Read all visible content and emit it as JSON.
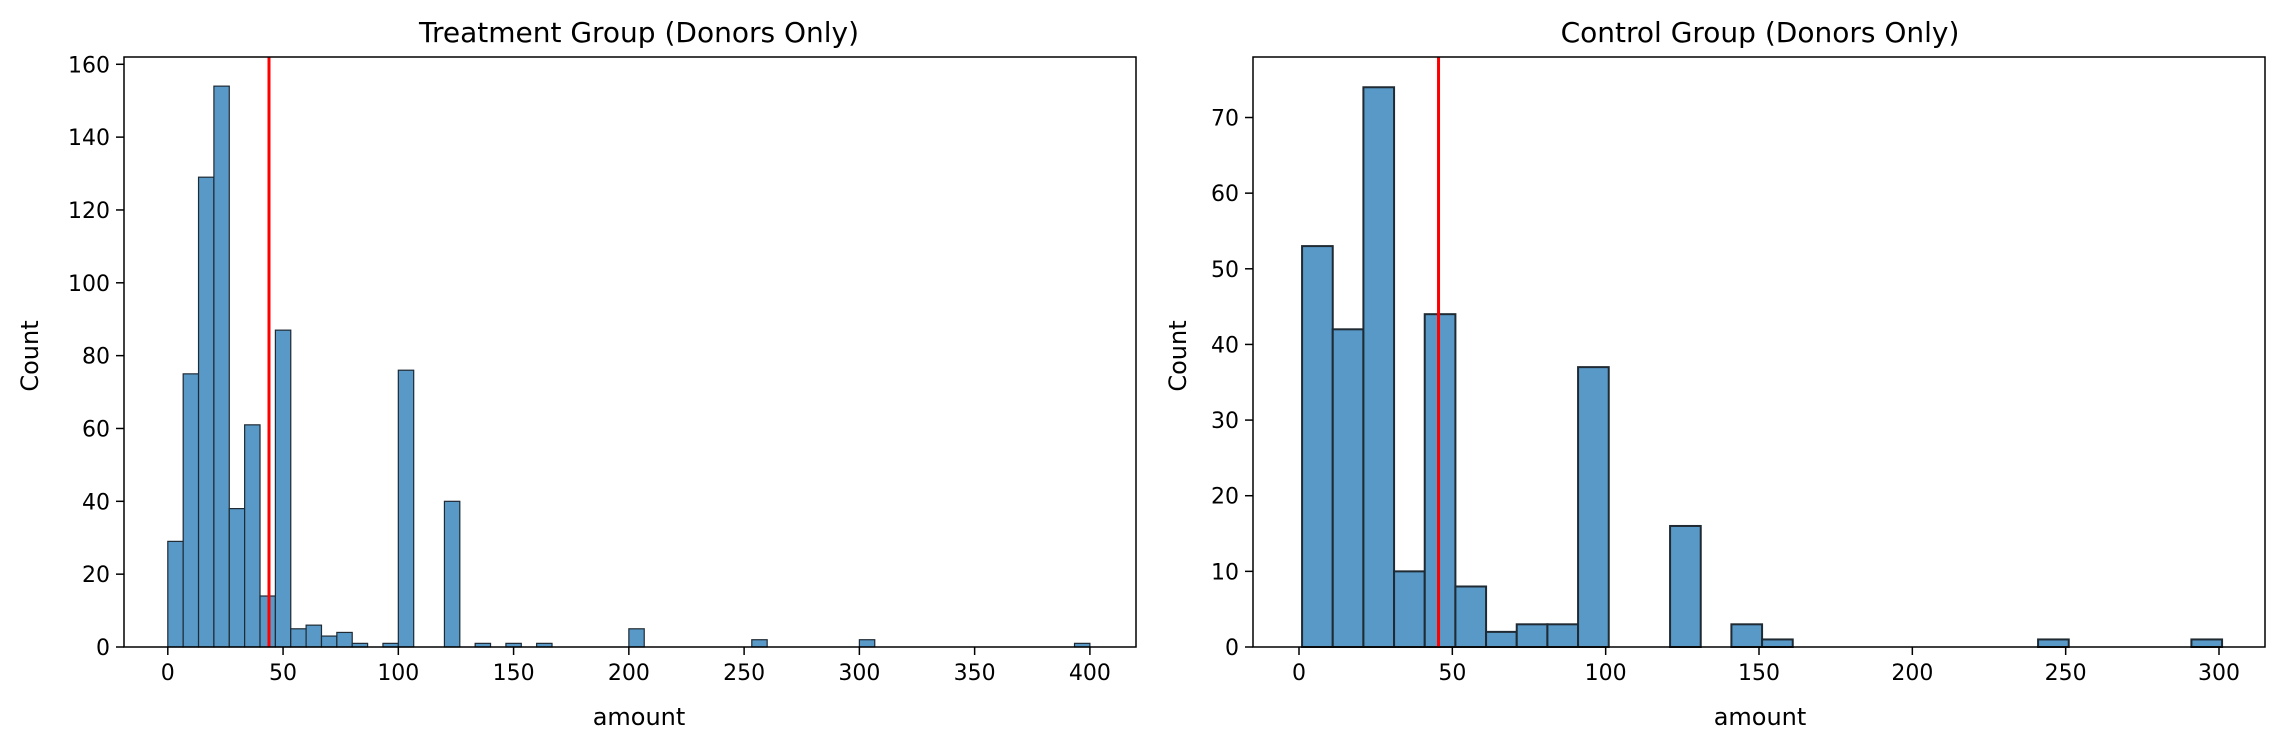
{
  "chart_data": [
    {
      "type": "bar",
      "title": "Treatment Group (Donors Only)",
      "xlabel": "amount",
      "ylabel": "Count",
      "xlim": [
        -19,
        420
      ],
      "ylim": [
        0,
        162
      ],
      "xticks": [
        0,
        50,
        100,
        150,
        200,
        250,
        300,
        350,
        400
      ],
      "yticks": [
        0,
        20,
        40,
        60,
        80,
        100,
        120,
        140,
        160
      ],
      "bin_width": 6.67,
      "bins": [
        {
          "x0": 0.0,
          "count": 29
        },
        {
          "x0": 6.67,
          "count": 75
        },
        {
          "x0": 13.33,
          "count": 129
        },
        {
          "x0": 20.0,
          "count": 154
        },
        {
          "x0": 26.67,
          "count": 38
        },
        {
          "x0": 33.33,
          "count": 61
        },
        {
          "x0": 40.0,
          "count": 14
        },
        {
          "x0": 46.67,
          "count": 87
        },
        {
          "x0": 53.33,
          "count": 5
        },
        {
          "x0": 60.0,
          "count": 6
        },
        {
          "x0": 66.67,
          "count": 3
        },
        {
          "x0": 73.33,
          "count": 4
        },
        {
          "x0": 80.0,
          "count": 1
        },
        {
          "x0": 93.33,
          "count": 1
        },
        {
          "x0": 100.0,
          "count": 76
        },
        {
          "x0": 120.0,
          "count": 40
        },
        {
          "x0": 133.33,
          "count": 1
        },
        {
          "x0": 146.67,
          "count": 1
        },
        {
          "x0": 160.0,
          "count": 1
        },
        {
          "x0": 200.0,
          "count": 5
        },
        {
          "x0": 253.33,
          "count": 2
        },
        {
          "x0": 300.0,
          "count": 2
        },
        {
          "x0": 393.33,
          "count": 1
        }
      ],
      "mean_line": 43.9,
      "bar_color": "#5899c8",
      "edge_color": "#1f2a33",
      "mean_line_color": "#ff0000",
      "grid": false
    },
    {
      "type": "bar",
      "title": "Control Group (Donors Only)",
      "xlabel": "amount",
      "ylabel": "Count",
      "xlim": [
        -15,
        315
      ],
      "ylim": [
        0,
        78
      ],
      "xticks": [
        0,
        50,
        100,
        150,
        200,
        250,
        300
      ],
      "yticks": [
        0,
        10,
        20,
        30,
        40,
        50,
        60,
        70
      ],
      "bin_width": 10,
      "bins": [
        {
          "x0": 1,
          "count": 53
        },
        {
          "x0": 11,
          "count": 42
        },
        {
          "x0": 21,
          "count": 74
        },
        {
          "x0": 31,
          "count": 10
        },
        {
          "x0": 41,
          "count": 44
        },
        {
          "x0": 51,
          "count": 8
        },
        {
          "x0": 61,
          "count": 2
        },
        {
          "x0": 71,
          "count": 3
        },
        {
          "x0": 81,
          "count": 3
        },
        {
          "x0": 91,
          "count": 37
        },
        {
          "x0": 121,
          "count": 16
        },
        {
          "x0": 141,
          "count": 3
        },
        {
          "x0": 151,
          "count": 1
        },
        {
          "x0": 241,
          "count": 1
        },
        {
          "x0": 291,
          "count": 1
        }
      ],
      "mean_line": 45.5,
      "bar_color": "#5899c8",
      "edge_color": "#1f2a33",
      "mean_line_color": "#ff0000",
      "grid": false
    }
  ]
}
